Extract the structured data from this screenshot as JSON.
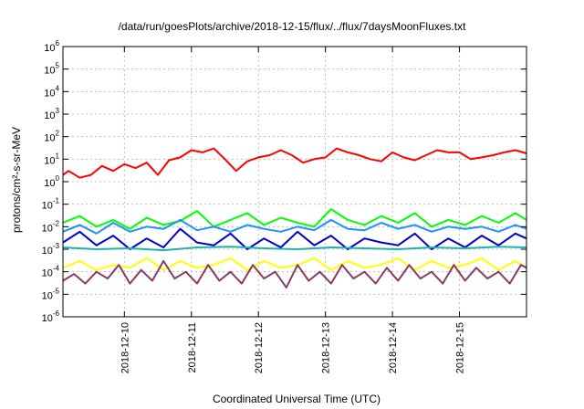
{
  "chart_data": {
    "type": "line",
    "title": "/data/run/goesPlots/archive/2018-12-15/flux/../flux/7daysMoonFluxes.txt",
    "xlabel": "Coordinated Universal Time (UTC)",
    "ylabel": "protons/cm²-s-sr-MeV",
    "y_scale": "log",
    "ylim": [
      1e-06,
      1000000.0
    ],
    "xlim": [
      "2018-12-09T02:00",
      "2018-12-16T00:00"
    ],
    "grid": true,
    "x_ticks": [
      "2018-12-10",
      "2018-12-11",
      "2018-12-12",
      "2018-12-13",
      "2018-12-14",
      "2018-12-15"
    ],
    "y_ticks": [
      {
        "base": "10",
        "exp": "-6"
      },
      {
        "base": "10",
        "exp": "-5"
      },
      {
        "base": "10",
        "exp": "-4"
      },
      {
        "base": "10",
        "exp": "-3"
      },
      {
        "base": "10",
        "exp": "-2"
      },
      {
        "base": "10",
        "exp": "-1"
      },
      {
        "base": "10",
        "exp": "0"
      },
      {
        "base": "10",
        "exp": "1"
      },
      {
        "base": "10",
        "exp": "2"
      },
      {
        "base": "10",
        "exp": "3"
      },
      {
        "base": "10",
        "exp": "4"
      },
      {
        "base": "10",
        "exp": "5"
      },
      {
        "base": "10",
        "exp": "6"
      }
    ],
    "series": [
      {
        "color": "#ff0000",
        "x": [
          "2018-12-09T02:00",
          "2018-12-09T04:00",
          "2018-12-09T08:00",
          "2018-12-09T12:00",
          "2018-12-09T16:00",
          "2018-12-09T20:00",
          "2018-12-10T00:00",
          "2018-12-10T04:00",
          "2018-12-10T08:00",
          "2018-12-10T12:00",
          "2018-12-10T16:00",
          "2018-12-10T20:00",
          "2018-12-11T00:00",
          "2018-12-11T04:00",
          "2018-12-11T08:00",
          "2018-12-11T12:00",
          "2018-12-11T16:00",
          "2018-12-11T20:00",
          "2018-12-12T00:00",
          "2018-12-12T04:00",
          "2018-12-12T08:00",
          "2018-12-12T12:00",
          "2018-12-12T16:00",
          "2018-12-12T20:00",
          "2018-12-13T00:00",
          "2018-12-13T04:00",
          "2018-12-13T08:00",
          "2018-12-13T12:00",
          "2018-12-13T16:00",
          "2018-12-13T20:00",
          "2018-12-14T00:00",
          "2018-12-14T04:00",
          "2018-12-14T08:00",
          "2018-12-14T12:00",
          "2018-12-14T16:00",
          "2018-12-14T20:00",
          "2018-12-15T00:00",
          "2018-12-15T04:00",
          "2018-12-15T08:00",
          "2018-12-15T12:00",
          "2018-12-15T16:00",
          "2018-12-15T20:00",
          "2018-12-16T00:00"
        ],
        "values": [
          2,
          3,
          1.5,
          2,
          5,
          3,
          6,
          4,
          7,
          2,
          9,
          12,
          25,
          20,
          30,
          10,
          3,
          8,
          12,
          15,
          25,
          15,
          7,
          10,
          12,
          30,
          20,
          15,
          10,
          8,
          20,
          12,
          9,
          15,
          25,
          20,
          20,
          10,
          12,
          15,
          20,
          25,
          18
        ]
      },
      {
        "color": "#00ff00",
        "x": [
          "2018-12-09T02:00",
          "2018-12-09T08:00",
          "2018-12-09T14:00",
          "2018-12-09T20:00",
          "2018-12-10T02:00",
          "2018-12-10T08:00",
          "2018-12-10T14:00",
          "2018-12-10T20:00",
          "2018-12-11T02:00",
          "2018-12-11T08:00",
          "2018-12-11T14:00",
          "2018-12-11T20:00",
          "2018-12-12T02:00",
          "2018-12-12T08:00",
          "2018-12-12T14:00",
          "2018-12-12T20:00",
          "2018-12-13T02:00",
          "2018-12-13T08:00",
          "2018-12-13T14:00",
          "2018-12-13T20:00",
          "2018-12-14T02:00",
          "2018-12-14T08:00",
          "2018-12-14T14:00",
          "2018-12-14T20:00",
          "2018-12-15T02:00",
          "2018-12-15T08:00",
          "2018-12-15T14:00",
          "2018-12-15T20:00",
          "2018-12-16T00:00"
        ],
        "values": [
          0.015,
          0.03,
          0.01,
          0.02,
          0.008,
          0.025,
          0.012,
          0.018,
          0.05,
          0.01,
          0.02,
          0.04,
          0.012,
          0.025,
          0.015,
          0.01,
          0.06,
          0.02,
          0.012,
          0.03,
          0.015,
          0.04,
          0.01,
          0.02,
          0.012,
          0.03,
          0.015,
          0.04,
          0.02
        ]
      },
      {
        "color": "#1e90ff",
        "x": [
          "2018-12-09T02:00",
          "2018-12-09T08:00",
          "2018-12-09T14:00",
          "2018-12-09T20:00",
          "2018-12-10T02:00",
          "2018-12-10T08:00",
          "2018-12-10T14:00",
          "2018-12-10T20:00",
          "2018-12-11T02:00",
          "2018-12-11T08:00",
          "2018-12-11T14:00",
          "2018-12-11T20:00",
          "2018-12-12T02:00",
          "2018-12-12T08:00",
          "2018-12-12T14:00",
          "2018-12-12T20:00",
          "2018-12-13T02:00",
          "2018-12-13T08:00",
          "2018-12-13T14:00",
          "2018-12-13T20:00",
          "2018-12-14T02:00",
          "2018-12-14T08:00",
          "2018-12-14T14:00",
          "2018-12-14T20:00",
          "2018-12-15T02:00",
          "2018-12-15T08:00",
          "2018-12-15T14:00",
          "2018-12-15T20:00",
          "2018-12-16T00:00"
        ],
        "values": [
          0.006,
          0.012,
          0.005,
          0.015,
          0.006,
          0.01,
          0.008,
          0.02,
          0.007,
          0.01,
          0.006,
          0.012,
          0.008,
          0.006,
          0.01,
          0.007,
          0.02,
          0.008,
          0.007,
          0.015,
          0.008,
          0.012,
          0.006,
          0.01,
          0.008,
          0.01,
          0.006,
          0.012,
          0.008
        ]
      },
      {
        "color": "#0000cd",
        "x": [
          "2018-12-09T02:00",
          "2018-12-09T08:00",
          "2018-12-09T14:00",
          "2018-12-09T20:00",
          "2018-12-10T02:00",
          "2018-12-10T08:00",
          "2018-12-10T14:00",
          "2018-12-10T20:00",
          "2018-12-11T02:00",
          "2018-12-11T08:00",
          "2018-12-11T14:00",
          "2018-12-11T20:00",
          "2018-12-12T02:00",
          "2018-12-12T08:00",
          "2018-12-12T14:00",
          "2018-12-12T20:00",
          "2018-12-13T02:00",
          "2018-12-13T08:00",
          "2018-12-13T14:00",
          "2018-12-13T20:00",
          "2018-12-14T02:00",
          "2018-12-14T08:00",
          "2018-12-14T14:00",
          "2018-12-14T20:00",
          "2018-12-15T02:00",
          "2018-12-15T08:00",
          "2018-12-15T14:00",
          "2018-12-15T20:00",
          "2018-12-16T00:00"
        ],
        "values": [
          0.002,
          0.006,
          0.0015,
          0.004,
          0.001,
          0.003,
          0.0012,
          0.008,
          0.002,
          0.0015,
          0.005,
          0.001,
          0.003,
          0.0012,
          0.006,
          0.0015,
          0.004,
          0.001,
          0.003,
          0.002,
          0.0015,
          0.005,
          0.001,
          0.003,
          0.0012,
          0.004,
          0.0015,
          0.005,
          0.003
        ]
      },
      {
        "color": "#20b2aa",
        "x": [
          "2018-12-09T02:00",
          "2018-12-09T14:00",
          "2018-12-10T02:00",
          "2018-12-10T14:00",
          "2018-12-11T02:00",
          "2018-12-11T14:00",
          "2018-12-12T02:00",
          "2018-12-12T14:00",
          "2018-12-13T02:00",
          "2018-12-13T14:00",
          "2018-12-14T02:00",
          "2018-12-14T14:00",
          "2018-12-15T02:00",
          "2018-12-15T14:00",
          "2018-12-16T00:00"
        ],
        "values": [
          0.0012,
          0.001,
          0.0011,
          0.0009,
          0.0012,
          0.0013,
          0.0011,
          0.001,
          0.0012,
          0.0011,
          0.001,
          0.0012,
          0.0011,
          0.0013,
          0.0012
        ]
      },
      {
        "color": "#ffff00",
        "x": [
          "2018-12-09T02:00",
          "2018-12-09T08:00",
          "2018-12-09T14:00",
          "2018-12-09T20:00",
          "2018-12-10T02:00",
          "2018-12-10T08:00",
          "2018-12-10T14:00",
          "2018-12-10T20:00",
          "2018-12-11T02:00",
          "2018-12-11T08:00",
          "2018-12-11T14:00",
          "2018-12-11T20:00",
          "2018-12-12T02:00",
          "2018-12-12T08:00",
          "2018-12-12T14:00",
          "2018-12-12T20:00",
          "2018-12-13T02:00",
          "2018-12-13T08:00",
          "2018-12-13T14:00",
          "2018-12-13T20:00",
          "2018-12-14T02:00",
          "2018-12-14T08:00",
          "2018-12-14T14:00",
          "2018-12-14T20:00",
          "2018-12-15T02:00",
          "2018-12-15T08:00",
          "2018-12-15T14:00",
          "2018-12-15T20:00",
          "2018-12-16T00:00"
        ],
        "values": [
          0.00015,
          0.0003,
          0.00012,
          0.0002,
          0.00015,
          0.0004,
          0.00012,
          0.0003,
          0.00015,
          0.0002,
          0.0004,
          0.00012,
          0.0003,
          0.00015,
          0.0002,
          0.0004,
          0.00012,
          0.0003,
          0.00015,
          0.0002,
          0.0004,
          0.00012,
          0.0003,
          0.00015,
          0.0002,
          0.0004,
          0.00012,
          0.0003,
          0.00015
        ]
      },
      {
        "color": "#8b3a62",
        "x": [
          "2018-12-09T02:00",
          "2018-12-09T06:00",
          "2018-12-09T10:00",
          "2018-12-09T14:00",
          "2018-12-09T18:00",
          "2018-12-09T22:00",
          "2018-12-10T02:00",
          "2018-12-10T06:00",
          "2018-12-10T10:00",
          "2018-12-10T14:00",
          "2018-12-10T18:00",
          "2018-12-10T22:00",
          "2018-12-11T02:00",
          "2018-12-11T06:00",
          "2018-12-11T10:00",
          "2018-12-11T14:00",
          "2018-12-11T18:00",
          "2018-12-11T22:00",
          "2018-12-12T02:00",
          "2018-12-12T06:00",
          "2018-12-12T10:00",
          "2018-12-12T14:00",
          "2018-12-12T18:00",
          "2018-12-12T22:00",
          "2018-12-13T02:00",
          "2018-12-13T06:00",
          "2018-12-13T10:00",
          "2018-12-13T14:00",
          "2018-12-13T18:00",
          "2018-12-13T22:00",
          "2018-12-14T02:00",
          "2018-12-14T06:00",
          "2018-12-14T10:00",
          "2018-12-14T14:00",
          "2018-12-14T18:00",
          "2018-12-14T22:00",
          "2018-12-15T02:00",
          "2018-12-15T06:00",
          "2018-12-15T10:00",
          "2018-12-15T14:00",
          "2018-12-15T18:00",
          "2018-12-15T22:00",
          "2018-12-16T00:00"
        ],
        "values": [
          4e-05,
          8e-05,
          3e-05,
          0.0001,
          5e-05,
          0.0002,
          3e-05,
          0.00012,
          4e-05,
          0.0003,
          5e-05,
          0.0001,
          3e-05,
          0.0002,
          4e-05,
          0.0001,
          3e-05,
          0.0002,
          5e-05,
          0.0001,
          2e-05,
          0.0002,
          4e-05,
          0.0001,
          3e-05,
          0.0002,
          5e-05,
          0.0001,
          3e-05,
          0.00015,
          4e-05,
          0.0002,
          5e-05,
          0.0001,
          3e-05,
          0.0002,
          4e-05,
          0.00015,
          5e-05,
          0.0001,
          3e-05,
          0.0002,
          0.00015
        ]
      }
    ]
  }
}
